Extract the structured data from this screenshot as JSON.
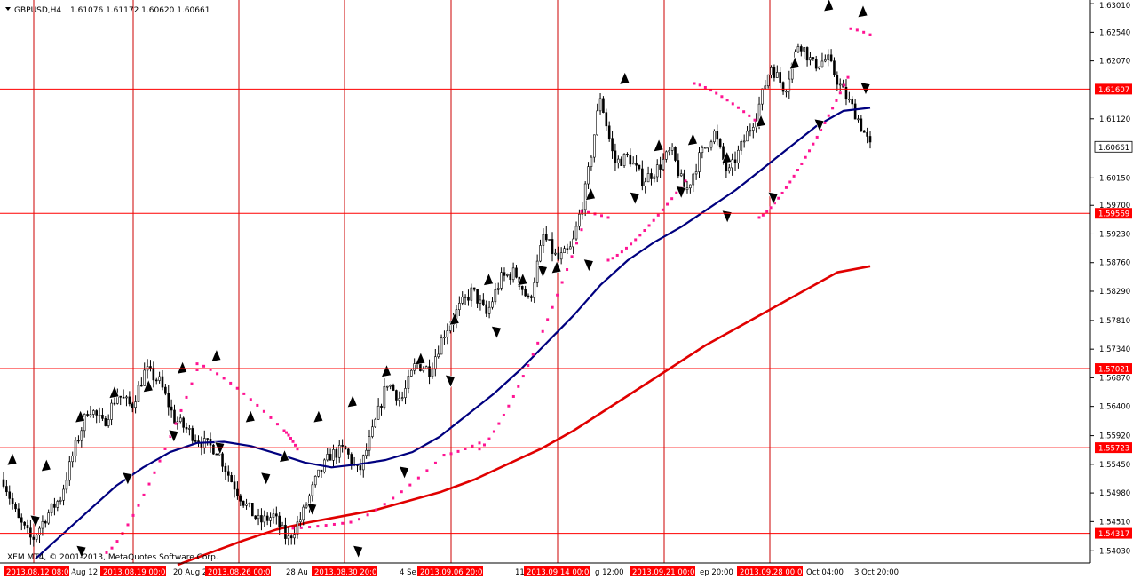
{
  "header": {
    "symbol": "GBPUSD,H4",
    "ohlc": "1.61076 1.61172 1.60620 1.60661"
  },
  "copyright": "XEM MT4, © 2001-2013, MetaQuotes Software Corp.",
  "colors": {
    "background": "#ffffff",
    "grid": "#cc0000",
    "levels": "#ff0000",
    "level_label_bg": "#ff0000",
    "candles": "#000000",
    "ma_fast": "#00007f",
    "ma_slow": "#e00000",
    "sar": "#ff1493",
    "fractals": "#000000"
  },
  "chart_data": {
    "type": "candlestick",
    "symbol": "GBPUSD",
    "timeframe": "H4",
    "y_axis": {
      "min": 1.5383,
      "max": 1.6307,
      "ticks": [
        "1.63010",
        "1.62540",
        "1.62070",
        "1.61120",
        "1.60150",
        "1.59700",
        "1.59230",
        "1.58760",
        "1.58290",
        "1.57810",
        "1.57340",
        "1.56870",
        "1.56400",
        "1.55920",
        "1.55450",
        "1.54980",
        "1.54510",
        "1.54030"
      ]
    },
    "x_axis": {
      "tick_labels": [
        "Aug 12:",
        "20 Aug 2",
        "28 Au",
        "4 Se",
        "11",
        "g 12:00",
        "ep 20:00",
        "Oct 04:00",
        "3 Oct 20:00"
      ],
      "period_separators": [
        "2013.08.12 08:00",
        "2013.08.19 00:00",
        "2013.08.26 00:00",
        "2013.08.30 20:00",
        "2013.09.06 20:00",
        "2013.09.14 00:00",
        "2013.09.21 00:00",
        "2013.09.28 00:00"
      ]
    },
    "horizontal_levels": [
      "1.61607",
      "1.59569",
      "1.57021",
      "1.55723",
      "1.54317"
    ],
    "current_price": "1.60661",
    "price_path": [
      [
        1.552,
        1.5455,
        1.542,
        1.546,
        1.549,
        1.557,
        1.564,
        1.561,
        1.566,
        1.564,
        1.57,
        1.568,
        1.562,
        1.56,
        1.558,
        1.557,
        1.552,
        1.548,
        1.545,
        1.546,
        1.542,
        1.546,
        1.552,
        1.556,
        1.557,
        1.553,
        1.56,
        1.568,
        1.565,
        1.571,
        1.57,
        1.576,
        1.58,
        1.583,
        1.579,
        1.585,
        1.586,
        1.581,
        1.592,
        1.588,
        1.59,
        1.6,
        1.615,
        1.604,
        1.605,
        1.601,
        1.603,
        1.606,
        1.599,
        1.605,
        1.609,
        1.602,
        1.607,
        1.612,
        1.62,
        1.616,
        1.624,
        1.62,
        1.621,
        1.616,
        1.612,
        1.6066
      ]
    ],
    "series": [
      {
        "name": "",
        "kind": "sma_fast",
        "values": [
          1.539,
          1.543,
          1.547,
          1.551,
          1.554,
          1.5565,
          1.558,
          1.5582,
          1.5575,
          1.5562,
          1.5548,
          1.554,
          1.5545,
          1.5552,
          1.5565,
          1.559,
          1.5625,
          1.566,
          1.57,
          1.5745,
          1.579,
          1.584,
          1.588,
          1.591,
          1.5935,
          1.5965,
          1.5995,
          1.603,
          1.6065,
          1.61,
          1.6125,
          1.613
        ]
      },
      {
        "name": "",
        "kind": "sma_slow",
        "values": [
          1.538,
          1.54,
          1.542,
          1.5438,
          1.545,
          1.546,
          1.547,
          1.5485,
          1.55,
          1.552,
          1.5545,
          1.557,
          1.56,
          1.5635,
          1.567,
          1.5705,
          1.574,
          1.577,
          1.58,
          1.583,
          1.586,
          1.587
        ]
      }
    ],
    "sar_segments": [
      {
        "start": 1.54,
        "end": 1.57,
        "n": 18
      },
      {
        "start": 1.571,
        "end": 1.56,
        "n": 14
      },
      {
        "start": 1.56,
        "end": 1.557,
        "n": 7
      },
      {
        "start": 1.544,
        "end": 1.545,
        "n": 8
      },
      {
        "start": 1.545,
        "end": 1.556,
        "n": 12
      },
      {
        "start": 1.556,
        "end": 1.558,
        "n": 6
      },
      {
        "start": 1.557,
        "end": 1.593,
        "n": 22
      },
      {
        "start": 1.596,
        "end": 1.595,
        "n": 5
      },
      {
        "start": 1.588,
        "end": 1.601,
        "n": 18
      },
      {
        "start": 1.617,
        "end": 1.611,
        "n": 12
      },
      {
        "start": 1.595,
        "end": 1.618,
        "n": 24
      },
      {
        "start": 1.626,
        "end": 1.625,
        "n": 4
      }
    ],
    "fractals_up": [
      1.5555,
      1.5545,
      1.5625,
      1.5665,
      1.5675,
      1.5705,
      1.5725,
      1.5625,
      1.556,
      1.5625,
      1.565,
      1.57,
      1.572,
      1.5785,
      1.585,
      1.585,
      1.587,
      1.599,
      1.618,
      1.607,
      1.608,
      1.605,
      1.611,
      1.6205,
      1.63,
      1.629
    ],
    "fractals_down": [
      1.545,
      1.54,
      1.552,
      1.559,
      1.557,
      1.552,
      1.547,
      1.54,
      1.553,
      1.568,
      1.576,
      1.586,
      1.587,
      1.598,
      1.599,
      1.595,
      1.598,
      1.61,
      1.616
    ]
  }
}
